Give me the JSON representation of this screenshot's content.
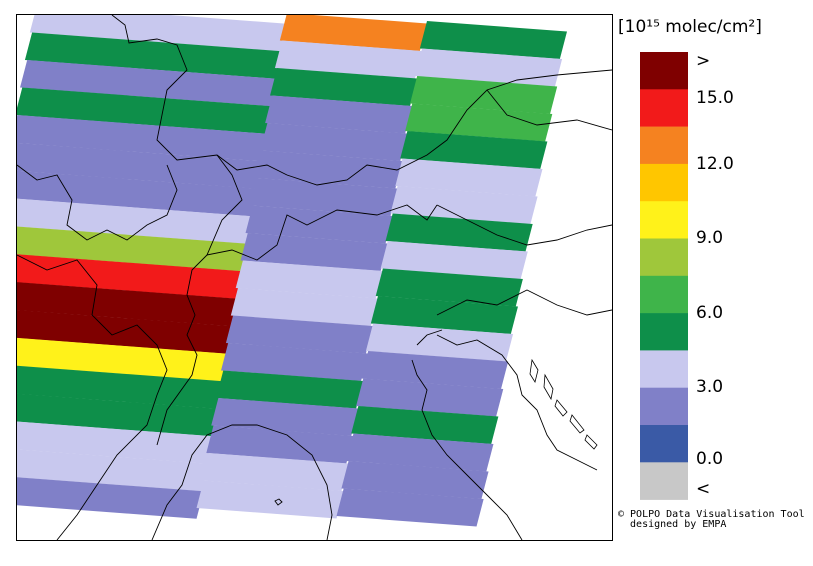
{
  "legend": {
    "unit": "[10¹⁵ molec/cm²]",
    "labels": [
      ">",
      "15.0",
      "12.0",
      "9.0",
      "6.0",
      "3.0",
      "0.0",
      "<"
    ],
    "bins": [
      {
        "name": "above-max",
        "color": "#7f0000"
      },
      {
        "name": "15",
        "color": "#f21a1a"
      },
      {
        "name": "13.5",
        "color": "#f58220"
      },
      {
        "name": "12",
        "color": "#ffc600"
      },
      {
        "name": "10.5",
        "color": "#fff21a"
      },
      {
        "name": "9",
        "color": "#9fc73b"
      },
      {
        "name": "7.5",
        "color": "#3fb44a"
      },
      {
        "name": "6",
        "color": "#0e8f4a"
      },
      {
        "name": "4.5",
        "color": "#c8c8ee"
      },
      {
        "name": "3",
        "color": "#8080c8"
      },
      {
        "name": "1.5",
        "color": "#3a5aa6"
      },
      {
        "name": "below-min",
        "color": "#c8c8c8"
      }
    ]
  },
  "credit": {
    "line1": "© POLPO Data Visualisation Tool",
    "line2": "  designed by EMPA"
  }
}
